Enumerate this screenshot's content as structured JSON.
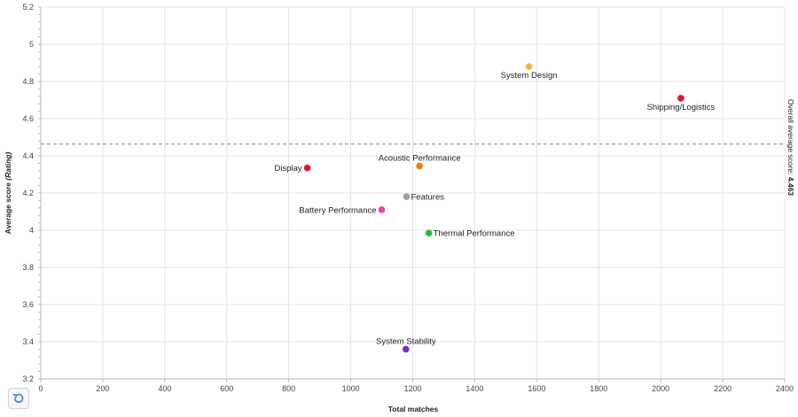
{
  "chart_data": {
    "type": "scatter",
    "xlabel": "Total matches",
    "ylabel_main": "Average score ",
    "ylabel_em": "(Rating)",
    "xlim": [
      0,
      2400
    ],
    "ylim": [
      3.2,
      5.2
    ],
    "xticks": [
      "0",
      "200",
      "400",
      "600",
      "800",
      "1000",
      "1200",
      "1400",
      "1600",
      "1800",
      "2000",
      "2200",
      "2400"
    ],
    "yticks": [
      "3.2",
      "3.4",
      "3.6",
      "3.8",
      "4",
      "4.2",
      "4.4",
      "4.6",
      "4.8",
      "5",
      "5.2"
    ],
    "grid": true,
    "reference_line": {
      "value": 4.463,
      "label": "Overall average score: ",
      "value_label": "4.463"
    },
    "points": [
      {
        "label": "System Design",
        "x": 1575,
        "y": 4.88,
        "color": "#f5b731",
        "label_pos": "below"
      },
      {
        "label": "Shipping/Logistics",
        "x": 2065,
        "y": 4.71,
        "color": "#e8112d",
        "label_pos": "below"
      },
      {
        "label": "Display",
        "x": 860,
        "y": 4.335,
        "color": "#e8112d",
        "label_pos": "left"
      },
      {
        "label": "Acoustic Performance",
        "x": 1222,
        "y": 4.345,
        "color": "#f07a10",
        "label_pos": "above"
      },
      {
        "label": "Features",
        "x": 1180,
        "y": 4.18,
        "color": "#a0a0a0",
        "label_pos": "right"
      },
      {
        "label": "Battery Performance",
        "x": 1100,
        "y": 4.11,
        "color": "#ee3f9a",
        "label_pos": "left"
      },
      {
        "label": "Thermal Performance",
        "x": 1252,
        "y": 3.985,
        "color": "#22c02b",
        "label_pos": "right"
      },
      {
        "label": "System Stability",
        "x": 1178,
        "y": 3.36,
        "color": "#7b2fbf",
        "label_pos": "above"
      }
    ]
  },
  "controls": {
    "reset_icon": "reset-zoom-icon"
  }
}
